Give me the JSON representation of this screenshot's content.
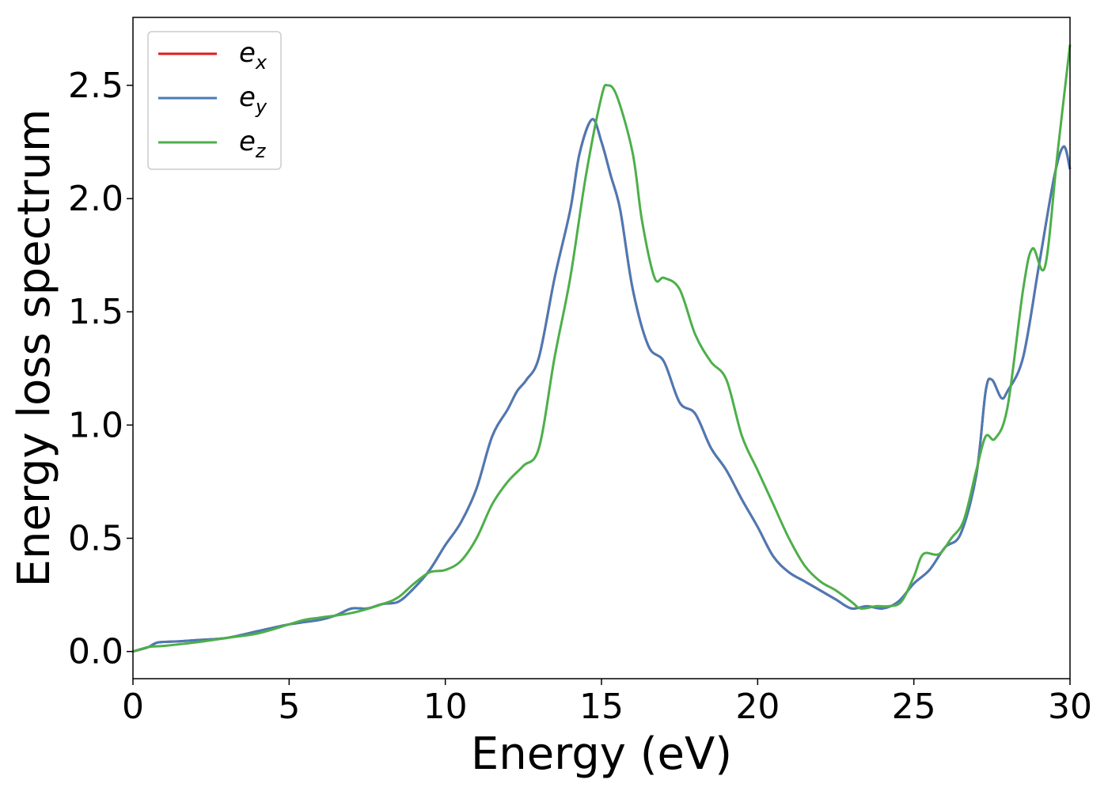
{
  "chart_data": {
    "type": "line",
    "xlabel": "Energy (eV)",
    "ylabel": "Energy loss spectrum",
    "xlim": [
      0,
      30
    ],
    "ylim": [
      -0.12,
      2.8
    ],
    "xticks": [
      0,
      5,
      10,
      15,
      20,
      25,
      30
    ],
    "xtick_labels": [
      "0",
      "5",
      "10",
      "15",
      "20",
      "25",
      "30"
    ],
    "yticks": [
      0.0,
      0.5,
      1.0,
      1.5,
      2.0,
      2.5
    ],
    "ytick_labels": [
      "0.0",
      "0.5",
      "1.0",
      "1.5",
      "2.0",
      "2.5"
    ],
    "grid": false,
    "legend_position": "top-left",
    "series": [
      {
        "name": "e",
        "sub": "x",
        "color": "#e41a1c",
        "x": [
          0,
          0.5,
          0.8,
          1.5,
          2,
          3,
          4,
          5,
          6,
          6.5,
          7,
          7.5,
          8,
          8.5,
          9,
          9.5,
          10,
          10.5,
          11,
          11.5,
          12,
          12.3,
          12.6,
          13,
          13.5,
          14,
          14.3,
          14.7,
          15,
          15.3,
          15.6,
          16,
          16.5,
          17,
          17.5,
          18,
          18.5,
          19,
          19.5,
          20,
          20.5,
          21,
          21.5,
          22,
          22.5,
          23,
          23.5,
          24,
          24.5,
          25,
          25.5,
          26,
          26.5,
          27,
          27.3,
          27.5,
          27.8,
          28,
          28.5,
          29,
          29.5,
          29.8,
          30
        ],
        "y": [
          0,
          0.02,
          0.04,
          0.045,
          0.05,
          0.06,
          0.09,
          0.12,
          0.14,
          0.16,
          0.19,
          0.19,
          0.21,
          0.22,
          0.28,
          0.36,
          0.47,
          0.57,
          0.72,
          0.95,
          1.07,
          1.15,
          1.2,
          1.3,
          1.65,
          1.95,
          2.2,
          2.35,
          2.25,
          2.1,
          1.95,
          1.6,
          1.35,
          1.28,
          1.1,
          1.05,
          0.9,
          0.8,
          0.67,
          0.55,
          0.42,
          0.35,
          0.31,
          0.27,
          0.23,
          0.19,
          0.2,
          0.19,
          0.22,
          0.3,
          0.36,
          0.46,
          0.52,
          0.78,
          1.15,
          1.2,
          1.12,
          1.15,
          1.3,
          1.7,
          2.1,
          2.23,
          2.13
        ]
      },
      {
        "name": "e",
        "sub": "y",
        "color": "#4a7ab5",
        "x": [
          0,
          0.5,
          0.8,
          1.5,
          2,
          3,
          4,
          5,
          6,
          6.5,
          7,
          7.5,
          8,
          8.5,
          9,
          9.5,
          10,
          10.5,
          11,
          11.5,
          12,
          12.3,
          12.6,
          13,
          13.5,
          14,
          14.3,
          14.7,
          15,
          15.3,
          15.6,
          16,
          16.5,
          17,
          17.5,
          18,
          18.5,
          19,
          19.5,
          20,
          20.5,
          21,
          21.5,
          22,
          22.5,
          23,
          23.5,
          24,
          24.5,
          25,
          25.5,
          26,
          26.5,
          27,
          27.3,
          27.5,
          27.8,
          28,
          28.5,
          29,
          29.5,
          29.8,
          30
        ],
        "y": [
          0,
          0.02,
          0.04,
          0.045,
          0.05,
          0.06,
          0.09,
          0.12,
          0.14,
          0.16,
          0.19,
          0.19,
          0.21,
          0.22,
          0.28,
          0.36,
          0.47,
          0.57,
          0.72,
          0.95,
          1.07,
          1.15,
          1.2,
          1.3,
          1.65,
          1.95,
          2.2,
          2.35,
          2.25,
          2.1,
          1.95,
          1.6,
          1.35,
          1.28,
          1.1,
          1.05,
          0.9,
          0.8,
          0.67,
          0.55,
          0.42,
          0.35,
          0.31,
          0.27,
          0.23,
          0.19,
          0.2,
          0.19,
          0.22,
          0.3,
          0.36,
          0.46,
          0.52,
          0.78,
          1.15,
          1.2,
          1.12,
          1.15,
          1.3,
          1.7,
          2.1,
          2.23,
          2.13
        ]
      },
      {
        "name": "e",
        "sub": "z",
        "color": "#4daf4a",
        "x": [
          0,
          0.5,
          1,
          2,
          3,
          4,
          5,
          5.5,
          6,
          7,
          8,
          8.5,
          9,
          9.5,
          10,
          10.5,
          11,
          11.5,
          12,
          12.5,
          13,
          13.5,
          14,
          14.5,
          15,
          15.2,
          15.5,
          16,
          16.3,
          16.7,
          17,
          17.5,
          18,
          18.5,
          19,
          19.5,
          20,
          20.5,
          21,
          21.5,
          22,
          22.5,
          23,
          23.3,
          23.8,
          24.2,
          24.6,
          25,
          25.3,
          25.8,
          26.2,
          26.6,
          27,
          27.3,
          27.6,
          28,
          28.5,
          28.8,
          29.2,
          29.6,
          30
        ],
        "y": [
          0,
          0.02,
          0.025,
          0.04,
          0.06,
          0.08,
          0.12,
          0.14,
          0.15,
          0.17,
          0.21,
          0.24,
          0.3,
          0.35,
          0.36,
          0.4,
          0.5,
          0.65,
          0.75,
          0.82,
          0.9,
          1.3,
          1.65,
          2.1,
          2.45,
          2.5,
          2.45,
          2.2,
          1.9,
          1.65,
          1.65,
          1.6,
          1.4,
          1.28,
          1.2,
          0.95,
          0.8,
          0.65,
          0.5,
          0.38,
          0.31,
          0.27,
          0.22,
          0.19,
          0.2,
          0.2,
          0.22,
          0.33,
          0.43,
          0.43,
          0.5,
          0.58,
          0.8,
          0.95,
          0.94,
          1.08,
          1.6,
          1.78,
          1.7,
          2.2,
          2.68
        ]
      }
    ]
  }
}
